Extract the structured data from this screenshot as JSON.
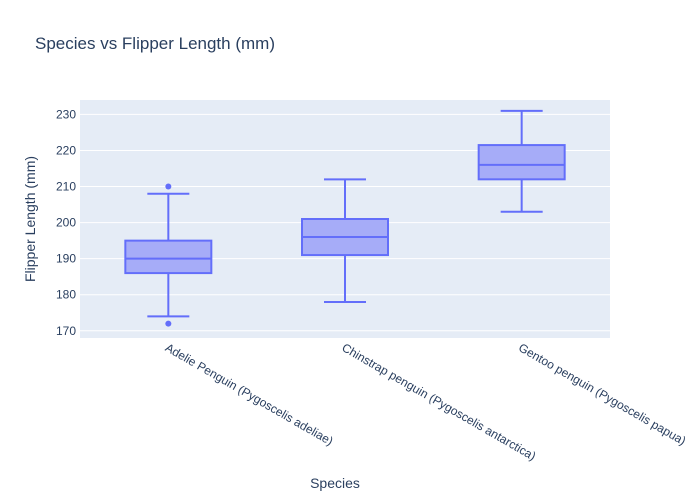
{
  "chart_data": {
    "type": "box",
    "title": "Species vs Flipper Length (mm)",
    "xlabel": "Species",
    "ylabel": "Flipper Length (mm)",
    "ylim": [
      168,
      234
    ],
    "yticks": [
      170,
      180,
      190,
      200,
      210,
      220,
      230
    ],
    "grid": true,
    "legend": "none",
    "colors": {
      "box_line": "#636efa",
      "box_fill": "#a6acf8",
      "plot_bg": "#e5ecf6",
      "grid": "#ffffff",
      "text": "#2a3f5f"
    },
    "categories": [
      "Adelie Penguin (Pygoscelis adeliae)",
      "Chinstrap penguin (Pygoscelis antarctica)",
      "Gentoo penguin (Pygoscelis papua)"
    ],
    "boxes": [
      {
        "lowerfence": 174,
        "q1": 186,
        "median": 190,
        "q3": 195,
        "upperfence": 208,
        "outliers": [
          172,
          210
        ]
      },
      {
        "lowerfence": 178,
        "q1": 191,
        "median": 196,
        "q3": 201,
        "upperfence": 212,
        "outliers": []
      },
      {
        "lowerfence": 203,
        "q1": 212,
        "median": 216,
        "q3": 221.5,
        "upperfence": 231,
        "outliers": []
      }
    ]
  }
}
